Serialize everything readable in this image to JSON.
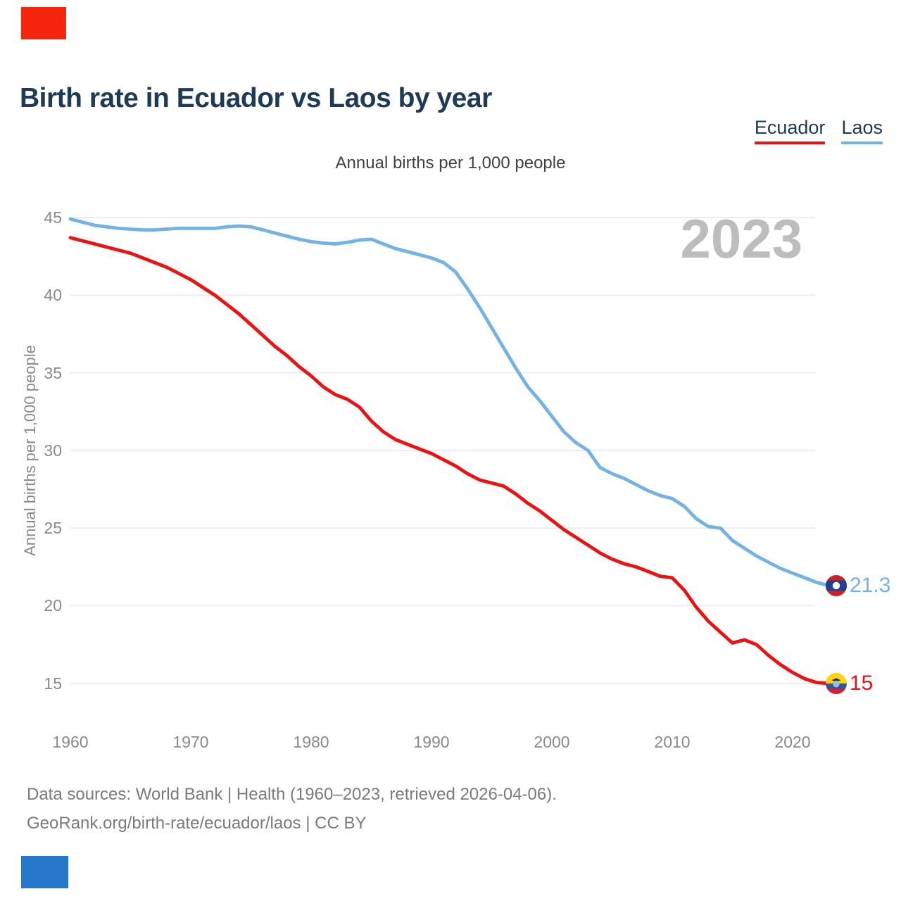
{
  "header": {
    "title": "Birth rate in Ecuador vs Laos by year",
    "title_color": "#1d3a56"
  },
  "decor": {
    "top_bar_color": "#f5260d",
    "bottom_bar_color": "#2577c9"
  },
  "legend": {
    "items": [
      {
        "label": "Ecuador",
        "color": "#ee1111"
      },
      {
        "label": "Laos",
        "color": "#72b2e5"
      }
    ]
  },
  "chart": {
    "subtitle": "Annual births per 1,000 people",
    "ylabel": "Annual births per 1,000 people",
    "watermark": "2023",
    "grid_color": "#e9e9e9",
    "tick_color": "#8a8a8a",
    "watermark_color": "#bdbdbd"
  },
  "chart_data": {
    "type": "line",
    "title": "Birth rate in Ecuador vs Laos by year",
    "subtitle": "Annual births per 1,000 people",
    "ylabel": "Annual births per 1,000 people",
    "x_range": [
      1960,
      2023
    ],
    "x_ticks": [
      1960,
      1970,
      1980,
      1990,
      2000,
      2010,
      2020
    ],
    "y_ticks": [
      15,
      20,
      25,
      30,
      35,
      40,
      45
    ],
    "grid": "horizontal-only",
    "legend_position": "top-right",
    "series": [
      {
        "name": "Ecuador",
        "color": "#ee1111",
        "end_label": "15",
        "values": [
          43.7,
          43.5,
          43.3,
          43.1,
          42.9,
          42.7,
          42.4,
          42.1,
          41.8,
          41.4,
          41.0,
          40.5,
          40.0,
          39.4,
          38.8,
          38.1,
          37.4,
          36.7,
          36.1,
          35.4,
          34.8,
          34.1,
          33.6,
          33.3,
          32.8,
          31.9,
          31.2,
          30.7,
          30.4,
          30.1,
          29.8,
          29.4,
          29.0,
          28.5,
          28.1,
          27.9,
          27.7,
          27.2,
          26.6,
          26.1,
          25.5,
          24.9,
          24.4,
          23.9,
          23.4,
          23.0,
          22.7,
          22.5,
          22.2,
          21.9,
          21.8,
          21.0,
          19.9,
          19.0,
          18.3,
          17.6,
          17.8,
          17.5,
          16.8,
          16.2,
          15.7,
          15.3,
          15.05,
          15.0
        ]
      },
      {
        "name": "Laos",
        "color": "#72b2e5",
        "end_label": "21.3",
        "values": [
          44.9,
          44.7,
          44.5,
          44.4,
          44.3,
          44.25,
          44.2,
          44.2,
          44.25,
          44.3,
          44.3,
          44.3,
          44.3,
          44.4,
          44.45,
          44.4,
          44.2,
          44.0,
          43.8,
          43.6,
          43.45,
          43.35,
          43.3,
          43.4,
          43.55,
          43.6,
          43.3,
          43.0,
          42.8,
          42.6,
          42.4,
          42.1,
          41.5,
          40.4,
          39.2,
          37.9,
          36.6,
          35.3,
          34.1,
          33.2,
          32.2,
          31.2,
          30.5,
          30.0,
          28.9,
          28.5,
          28.2,
          27.8,
          27.4,
          27.1,
          26.9,
          26.4,
          25.6,
          25.1,
          25.0,
          24.2,
          23.7,
          23.2,
          22.8,
          22.4,
          22.1,
          21.8,
          21.5,
          21.3
        ]
      }
    ]
  },
  "footer": {
    "line1": "Data sources: World Bank | Health (1960–2023, retrieved 2026-04-06).",
    "line2": "GeoRank.org/birth-rate/ecuador/laos | CC BY"
  }
}
